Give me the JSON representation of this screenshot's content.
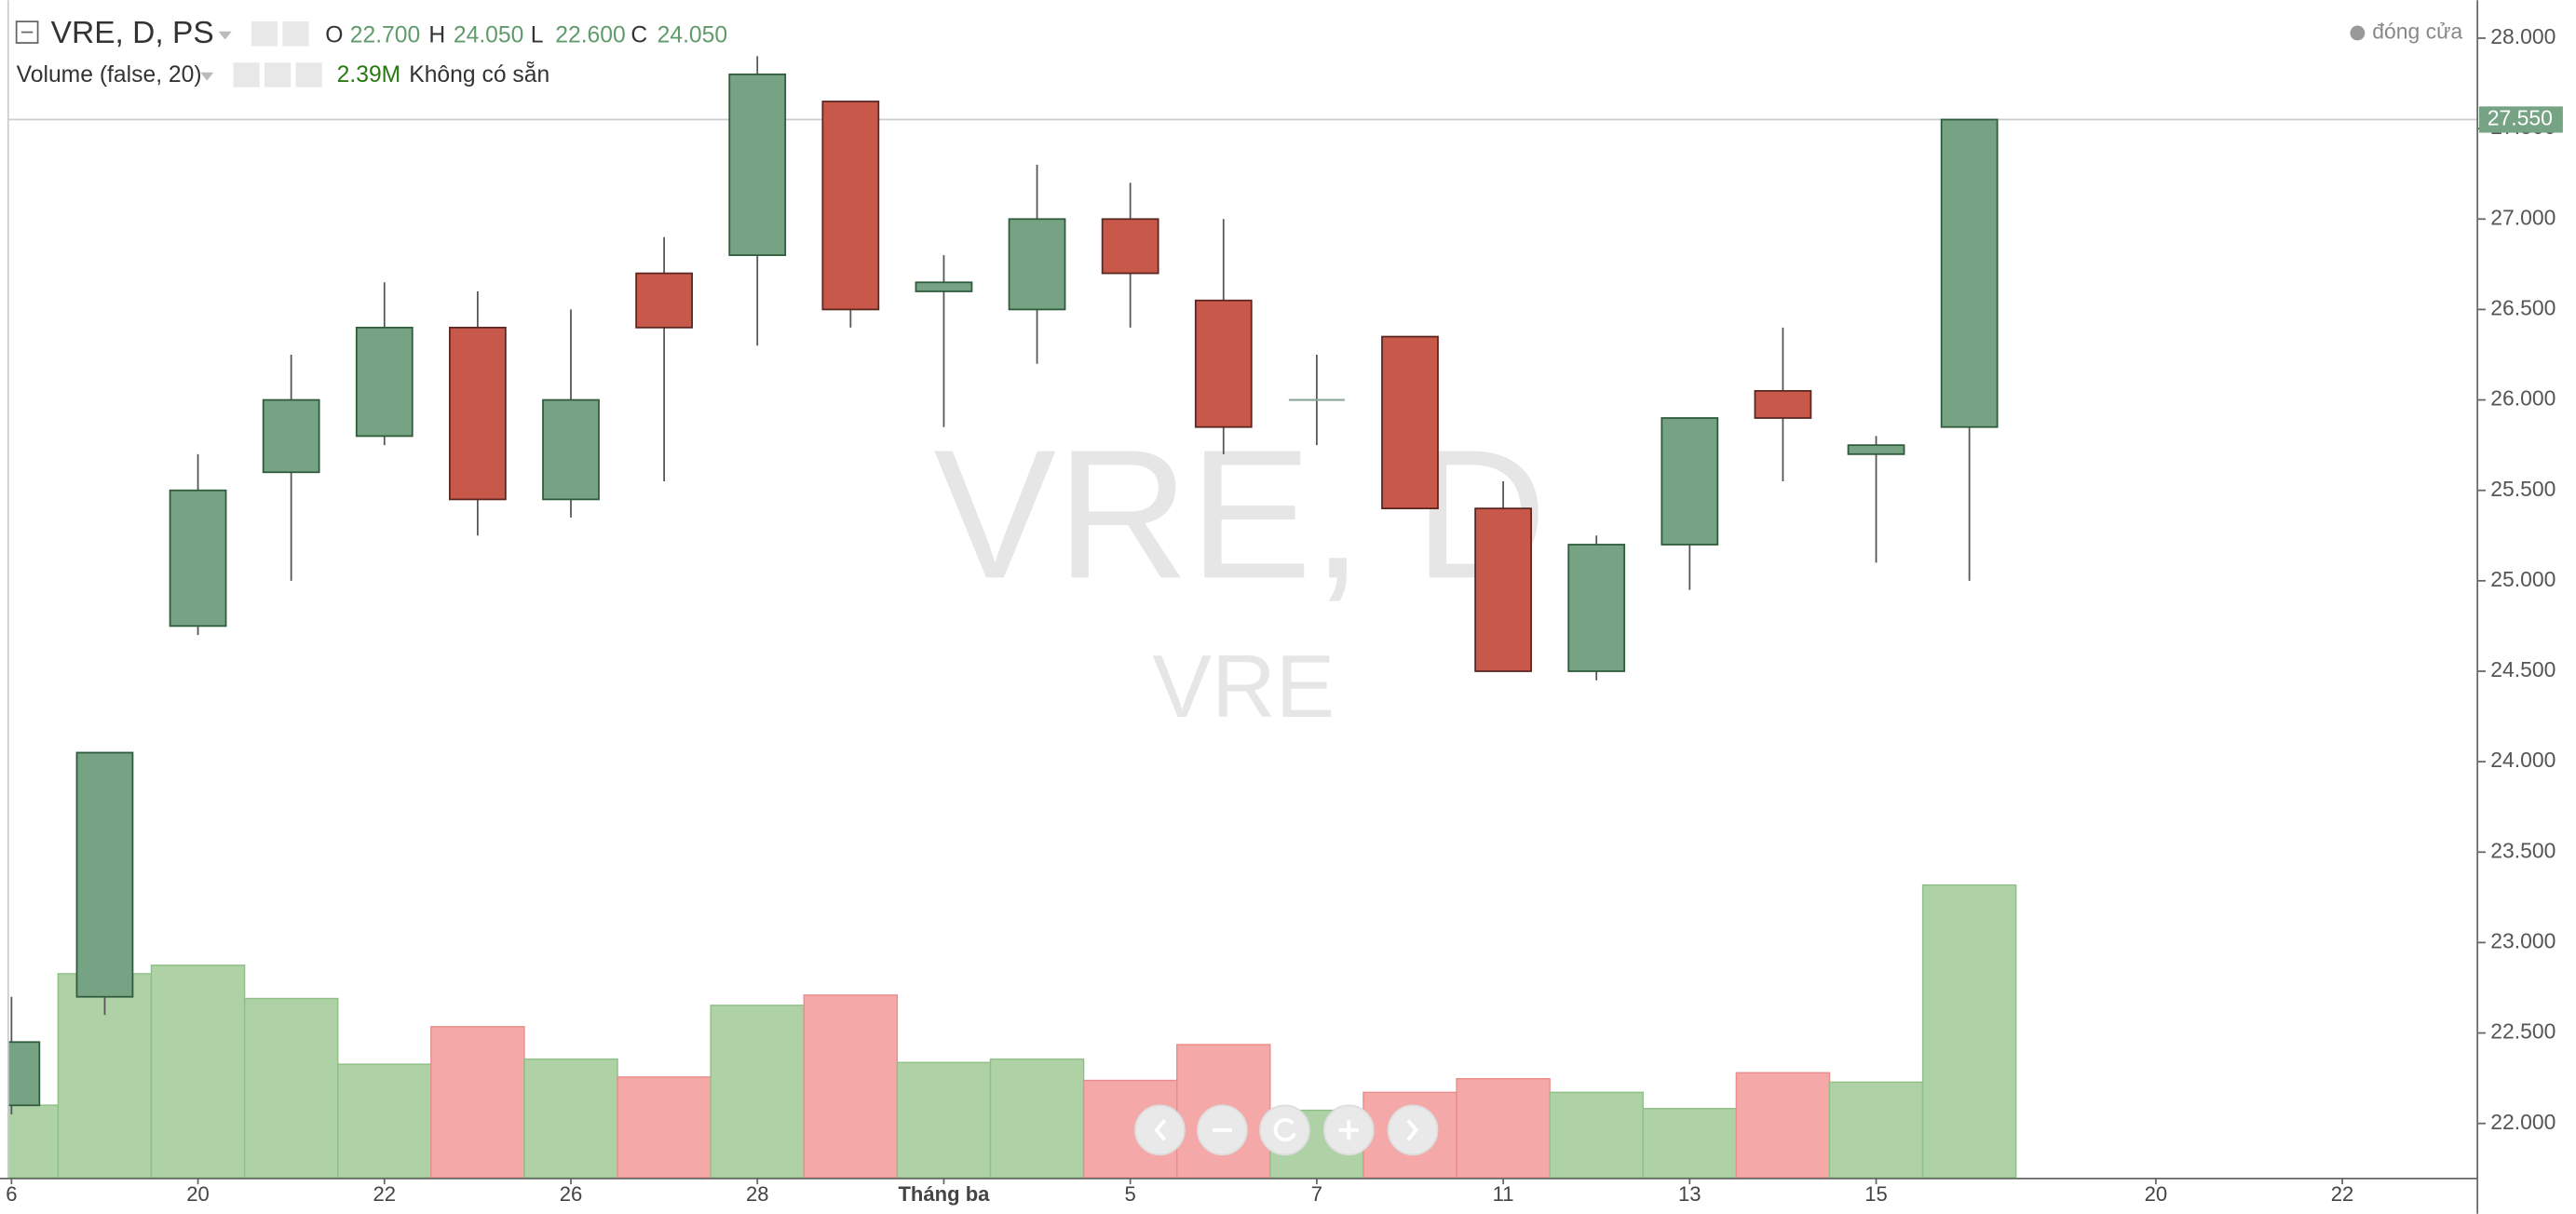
{
  "chart_data": {
    "type": "candlestick",
    "title": "VRE, D, PS",
    "watermark": "VRE, D",
    "watermark_sub": "VRE",
    "series_toggle": "đóng cửa",
    "categories": [
      "6",
      null,
      "20",
      null,
      "22",
      null,
      "26",
      null,
      "28",
      null,
      "Tháng ba",
      null,
      "5",
      null,
      "7",
      null,
      "11",
      null,
      "13",
      null,
      "15",
      null,
      null,
      "20",
      null,
      "22"
    ],
    "open": [
      22.1,
      22.7,
      24.75,
      25.6,
      25.8,
      26.4,
      25.45,
      26.7,
      26.8,
      27.65,
      26.6,
      26.5,
      27.0,
      26.55,
      26.0,
      26.35,
      25.4,
      24.5,
      25.2,
      26.05,
      25.7,
      25.85,
      null,
      null,
      null,
      null
    ],
    "high": [
      22.7,
      24.05,
      25.7,
      26.25,
      26.65,
      26.6,
      26.5,
      26.9,
      27.9,
      27.65,
      26.8,
      27.3,
      27.2,
      27.0,
      26.25,
      26.35,
      25.55,
      25.25,
      25.9,
      26.4,
      25.8,
      27.55,
      null,
      null,
      null,
      null
    ],
    "low": [
      22.05,
      22.6,
      24.7,
      25.0,
      25.75,
      25.25,
      25.35,
      25.55,
      26.3,
      26.4,
      25.85,
      26.2,
      26.4,
      25.7,
      25.75,
      25.4,
      24.5,
      24.45,
      24.95,
      25.55,
      25.1,
      25.0,
      null,
      null,
      null,
      null
    ],
    "close": [
      22.45,
      24.05,
      25.5,
      26.0,
      26.4,
      25.45,
      26.0,
      26.4,
      27.8,
      26.5,
      26.65,
      27.0,
      26.7,
      25.85,
      26.0,
      25.4,
      24.5,
      25.2,
      25.9,
      25.9,
      25.75,
      27.55,
      null,
      null,
      null,
      null
    ],
    "up_color": "#76a383",
    "down_color": "#c8584a",
    "ylim": [
      21.7,
      28.21
    ],
    "yticks": [
      {
        "value": 22,
        "label": "22.000"
      },
      {
        "value": 22.5,
        "label": "22.500"
      },
      {
        "value": 23,
        "label": "23.000"
      },
      {
        "value": 23.5,
        "label": "23.500"
      },
      {
        "value": 24,
        "label": "24.000"
      },
      {
        "value": 24.5,
        "label": "24.500"
      },
      {
        "value": 25,
        "label": "25.000"
      },
      {
        "value": 25.5,
        "label": "25.500"
      },
      {
        "value": 26,
        "label": "26.000"
      },
      {
        "value": 26.5,
        "label": "26.500"
      },
      {
        "value": 27,
        "label": "27.000"
      },
      {
        "value": 27.5,
        "label": "27.500"
      },
      {
        "value": 28,
        "label": "28.000"
      }
    ],
    "last_price": {
      "value": 27.55,
      "label": "27.550"
    },
    "volume": {
      "name": "Volume (false, 20)",
      "values": [
        0.85,
        2.39,
        2.49,
        2.1,
        1.33,
        1.77,
        1.39,
        1.18,
        2.02,
        2.14,
        1.35,
        1.39,
        1.14,
        1.56,
        0.79,
        1.0,
        1.16,
        1.0,
        0.81,
        1.23,
        1.12,
        3.43,
        null,
        null,
        null,
        null
      ],
      "ylim": [
        0,
        13.8
      ],
      "up_color": "#aed1a5",
      "down_color": "#f4a9a8"
    },
    "legend": {
      "open_label": "O",
      "open": "22.700",
      "high_label": "H",
      "high": "24.050",
      "low_label": "L",
      "low": "22.600",
      "close_label": "C",
      "close": "24.050",
      "volume": "2.39M",
      "volume_status": "Không có sẵn"
    }
  }
}
